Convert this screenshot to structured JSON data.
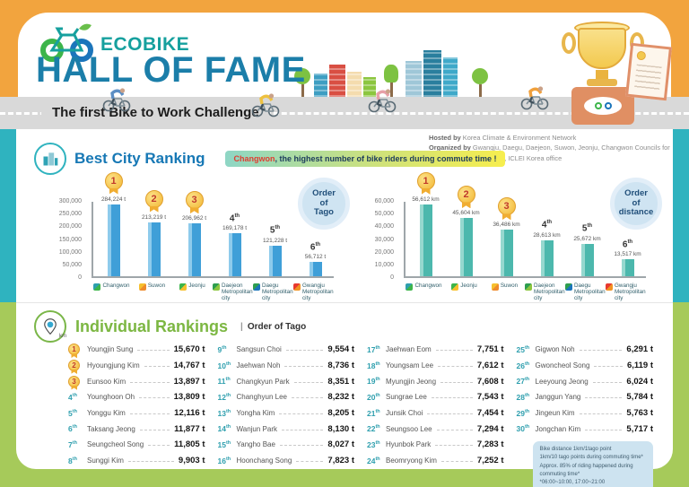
{
  "header": {
    "logo_text": "ECOBIKE",
    "title": "HALL OF FAME",
    "subtitle": "The first Bike to Work Challenge"
  },
  "credits": {
    "hosted_label": "Hosted by",
    "hosted_text": "Korea Climate & Environment Network",
    "organized_label": "Organized by",
    "organized_text": "Gwangju, Daegu, Daejeon, Suwon, Jeonju, Changwon Councils for Sustainable Development, ICLEI Korea office"
  },
  "best_city": {
    "title": "Best City Ranking",
    "highlight_city": "Changwon",
    "highlight_rest": ", the highest number of bike riders during commute time !"
  },
  "chart_data": [
    {
      "type": "bar",
      "title": "Order of Tago",
      "badge_lines": [
        "Order",
        "of",
        "Tago"
      ],
      "unit": "t",
      "categories": [
        "Changwon",
        "Suwon",
        "Jeonju",
        "Daejeon Metropolitan city",
        "Daegu Metropolitan city",
        "Gwangju Metropolitan city"
      ],
      "values": [
        284224,
        213219,
        206962,
        169178,
        121228,
        56712
      ],
      "ranks": [
        1,
        2,
        3,
        4,
        5,
        6
      ],
      "ylim": [
        0,
        300000
      ],
      "yticks": [
        "300,000",
        "250,000",
        "200,000",
        "150,000",
        "100,000",
        "50,000",
        "0"
      ],
      "bar_color": "#3f9fd8",
      "bar_light": "#8ecbec",
      "icon_colors": [
        [
          "#2e9fae",
          "#3db54a"
        ],
        [
          "#f6c02e",
          "#ef8b2c"
        ],
        [
          "#3db54a",
          "#f6c02e"
        ],
        [
          "#2e9e4f",
          "#8dc63f"
        ],
        [
          "#2e9e4f",
          "#1b75bb"
        ],
        [
          "#e8392f",
          "#f19322"
        ]
      ]
    },
    {
      "type": "bar",
      "title": "Order of distance",
      "badge_lines": [
        "Order",
        "of",
        "distance"
      ],
      "unit": "km",
      "categories": [
        "Changwon",
        "Jeonju",
        "Suwon",
        "Daejeon Metropolitan city",
        "Daegu Metropolitan city",
        "Gwangju Metropolitan city"
      ],
      "values": [
        56612,
        45604,
        36486,
        28613,
        25672,
        13517
      ],
      "ranks": [
        1,
        2,
        3,
        4,
        5,
        6
      ],
      "ylim": [
        0,
        60000
      ],
      "yticks": [
        "60,000",
        "50,000",
        "40,000",
        "30,000",
        "20,000",
        "10,000",
        "0"
      ],
      "bar_color": "#4cb8ad",
      "bar_light": "#96d8cf",
      "icon_colors": [
        [
          "#2e9fae",
          "#3db54a"
        ],
        [
          "#3db54a",
          "#f6c02e"
        ],
        [
          "#f6c02e",
          "#ef8b2c"
        ],
        [
          "#2e9e4f",
          "#8dc63f"
        ],
        [
          "#2e9e4f",
          "#1b75bb"
        ],
        [
          "#e8392f",
          "#f19322"
        ]
      ]
    }
  ],
  "individual": {
    "title": "Individual Rankings",
    "divider": "|",
    "order_label": "Order of Tago",
    "entries": [
      {
        "rank": 1,
        "name": "Youngjin Sung",
        "value": "15,670 t"
      },
      {
        "rank": 2,
        "name": "Hyoungjung Kim",
        "value": "14,767 t"
      },
      {
        "rank": 3,
        "name": "Eunsoo Kim",
        "value": "13,897 t"
      },
      {
        "rank": 4,
        "name": "Younghoon Oh",
        "value": "13,809 t"
      },
      {
        "rank": 5,
        "name": "Yonggu Kim",
        "value": "12,116 t"
      },
      {
        "rank": 6,
        "name": "Taksang Jeong",
        "value": "11,877 t"
      },
      {
        "rank": 7,
        "name": "Seungcheol Song",
        "value": "11,805 t"
      },
      {
        "rank": 8,
        "name": "Sunggi Kim",
        "value": "9,903 t"
      },
      {
        "rank": 9,
        "name": "Sangsun Choi",
        "value": "9,554 t"
      },
      {
        "rank": 10,
        "name": "Jaehwan Noh",
        "value": "8,736 t"
      },
      {
        "rank": 11,
        "name": "Changkyun Park",
        "value": "8,351 t"
      },
      {
        "rank": 12,
        "name": "Changhyun Lee",
        "value": "8,232 t"
      },
      {
        "rank": 13,
        "name": "Yongha Kim",
        "value": "8,205 t"
      },
      {
        "rank": 14,
        "name": "Wanjun Park",
        "value": "8,130 t"
      },
      {
        "rank": 15,
        "name": "Yangho Bae",
        "value": "8,027 t"
      },
      {
        "rank": 16,
        "name": "Hoonchang Song",
        "value": "7,823 t"
      },
      {
        "rank": 17,
        "name": "Jaehwan Eom",
        "value": "7,751 t"
      },
      {
        "rank": 18,
        "name": "Youngsam Lee",
        "value": "7,612 t"
      },
      {
        "rank": 19,
        "name": "Myungjin Jeong",
        "value": "7,608 t"
      },
      {
        "rank": 20,
        "name": "Sungrae Lee",
        "value": "7,543 t"
      },
      {
        "rank": 21,
        "name": "Junsik Choi",
        "value": "7,454 t"
      },
      {
        "rank": 22,
        "name": "Seungsoo Lee",
        "value": "7,294 t"
      },
      {
        "rank": 23,
        "name": "Hyunbok Park",
        "value": "7,283 t"
      },
      {
        "rank": 24,
        "name": "Beomryong Kim",
        "value": "7,252 t"
      },
      {
        "rank": 25,
        "name": "Gigwon Noh",
        "value": "6,291 t"
      },
      {
        "rank": 26,
        "name": "Gwoncheol Song",
        "value": "6,119 t"
      },
      {
        "rank": 27,
        "name": "Leeyoung Jeong",
        "value": "6,024 t"
      },
      {
        "rank": 28,
        "name": "Janggun Yang",
        "value": "5,784 t"
      },
      {
        "rank": 29,
        "name": "Jingeun Kim",
        "value": "5,763 t"
      },
      {
        "rank": 30,
        "name": "Jongchan Kim",
        "value": "5,717 t"
      }
    ],
    "footnote_lines": [
      "Bike distance 1km/1tago point",
      "1km/10 tago points during commuting time*",
      "Approx. 85% of riding happened during commuting time*",
      "*06:00~10:00, 17:00~21:00"
    ]
  }
}
